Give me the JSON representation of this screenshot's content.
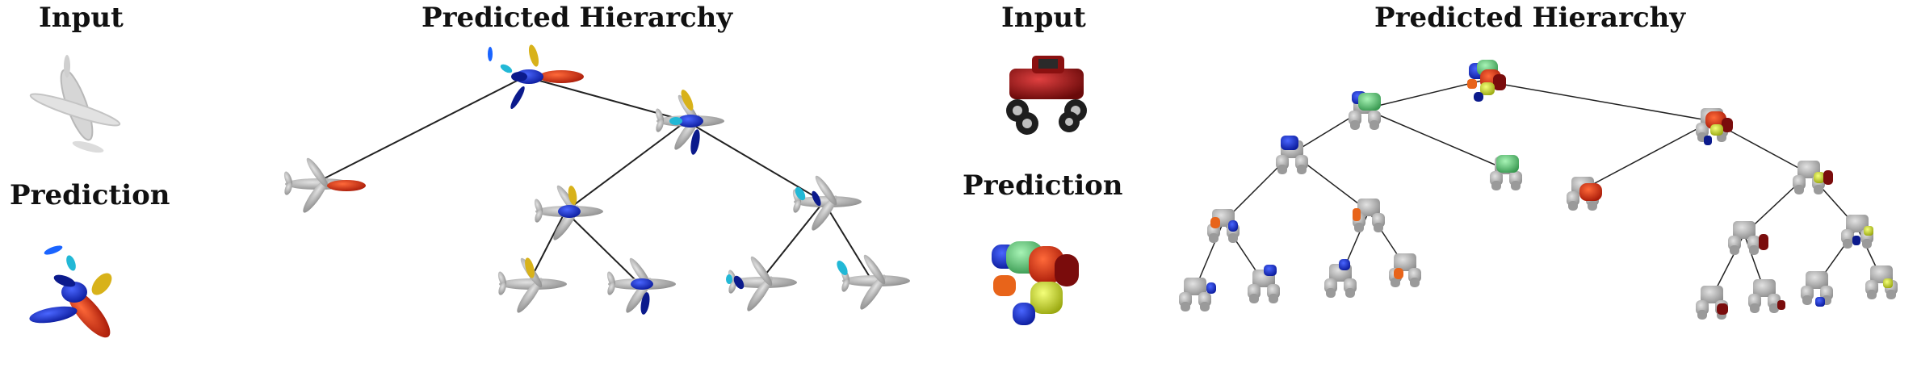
{
  "headings": {
    "input_left": "Input",
    "prediction_left": "Prediction",
    "hierarchy_left": "Predicted Hierarchy",
    "input_right": "Input",
    "prediction_right": "Prediction",
    "hierarchy_right": "Predicted Hierarchy"
  },
  "colors": {
    "blue": "#1a2fd6",
    "dark_blue": "#0b1a8c",
    "cyan": "#22b8d6",
    "yellow": "#d8b21a",
    "red": "#d83212",
    "orange": "#e8641a",
    "green": "#5fd47a",
    "lime": "#d6e81a",
    "dark_red": "#7a0c0c",
    "gray": "#a8a8a8",
    "truck_red": "#b01818"
  },
  "examples": [
    {
      "object": "airplane"
    },
    {
      "object": "truck"
    }
  ]
}
